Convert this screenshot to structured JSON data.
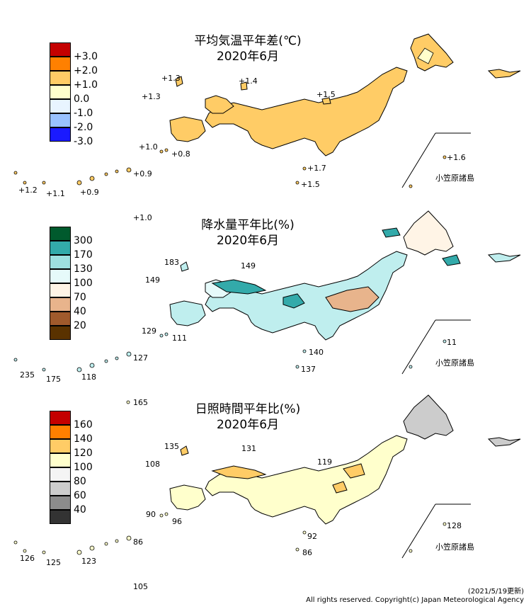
{
  "panels": [
    {
      "id": "temp",
      "title": "平均気温平年差(℃)",
      "subtitle": "2020年6月",
      "legend": [
        "+3.0",
        "+2.0",
        "+1.0",
        "0.0",
        "-1.0",
        "-2.0",
        "-3.0"
      ],
      "colors": [
        "#c40000",
        "#ff8000",
        "#ffcc66",
        "#ffffcc",
        "#e8f4ff",
        "#99c2ff",
        "#1a1aff"
      ],
      "land_color": "#ffcc66",
      "labels": [
        "+1.3",
        "+1.3",
        "+1.4",
        "+1.5",
        "+1.0",
        "+0.8",
        "+1.6",
        "+1.7",
        "+1.5",
        "+0.9",
        "+1.2",
        "+1.1",
        "+0.9",
        "+1.0"
      ],
      "ogasawara": "小笠原諸島"
    },
    {
      "id": "precip",
      "title": "降水量平年比(%)",
      "subtitle": "2020年6月",
      "legend": [
        "300",
        "170",
        "130",
        "100",
        "70",
        "40",
        "20"
      ],
      "colors": [
        "#005a2d",
        "#33aaaa",
        "#9ee0e0",
        "#e6fafa",
        "#fff4e6",
        "#e8b48c",
        "#a05a2c",
        "#5a3200"
      ],
      "land_color": "#bfeeee",
      "labels": [
        "183",
        "149",
        "149",
        "129",
        "111",
        "140",
        "137",
        "11",
        "127",
        "235",
        "175",
        "118"
      ],
      "ogasawara": "小笠原諸島"
    },
    {
      "id": "sun",
      "title": "日照時間平年比(%)",
      "subtitle": "2020年6月",
      "legend": [
        "160",
        "140",
        "120",
        "100",
        "80",
        "60",
        "40"
      ],
      "colors": [
        "#c40000",
        "#ff8000",
        "#ffcc66",
        "#ffffcc",
        "#f4f4f4",
        "#cccccc",
        "#8c8c8c",
        "#333333"
      ],
      "land_color": "#ffffcc",
      "labels": [
        "135",
        "131",
        "108",
        "119",
        "90",
        "96",
        "92",
        "86",
        "128",
        "86",
        "126",
        "125",
        "123",
        "165",
        "105"
      ],
      "ogasawara": "小笠原諸島"
    }
  ],
  "footer": {
    "updated": "(2021/5/19更新)",
    "copyright": "All rights reserved. Copyright(c) Japan Meteorological Agency"
  }
}
